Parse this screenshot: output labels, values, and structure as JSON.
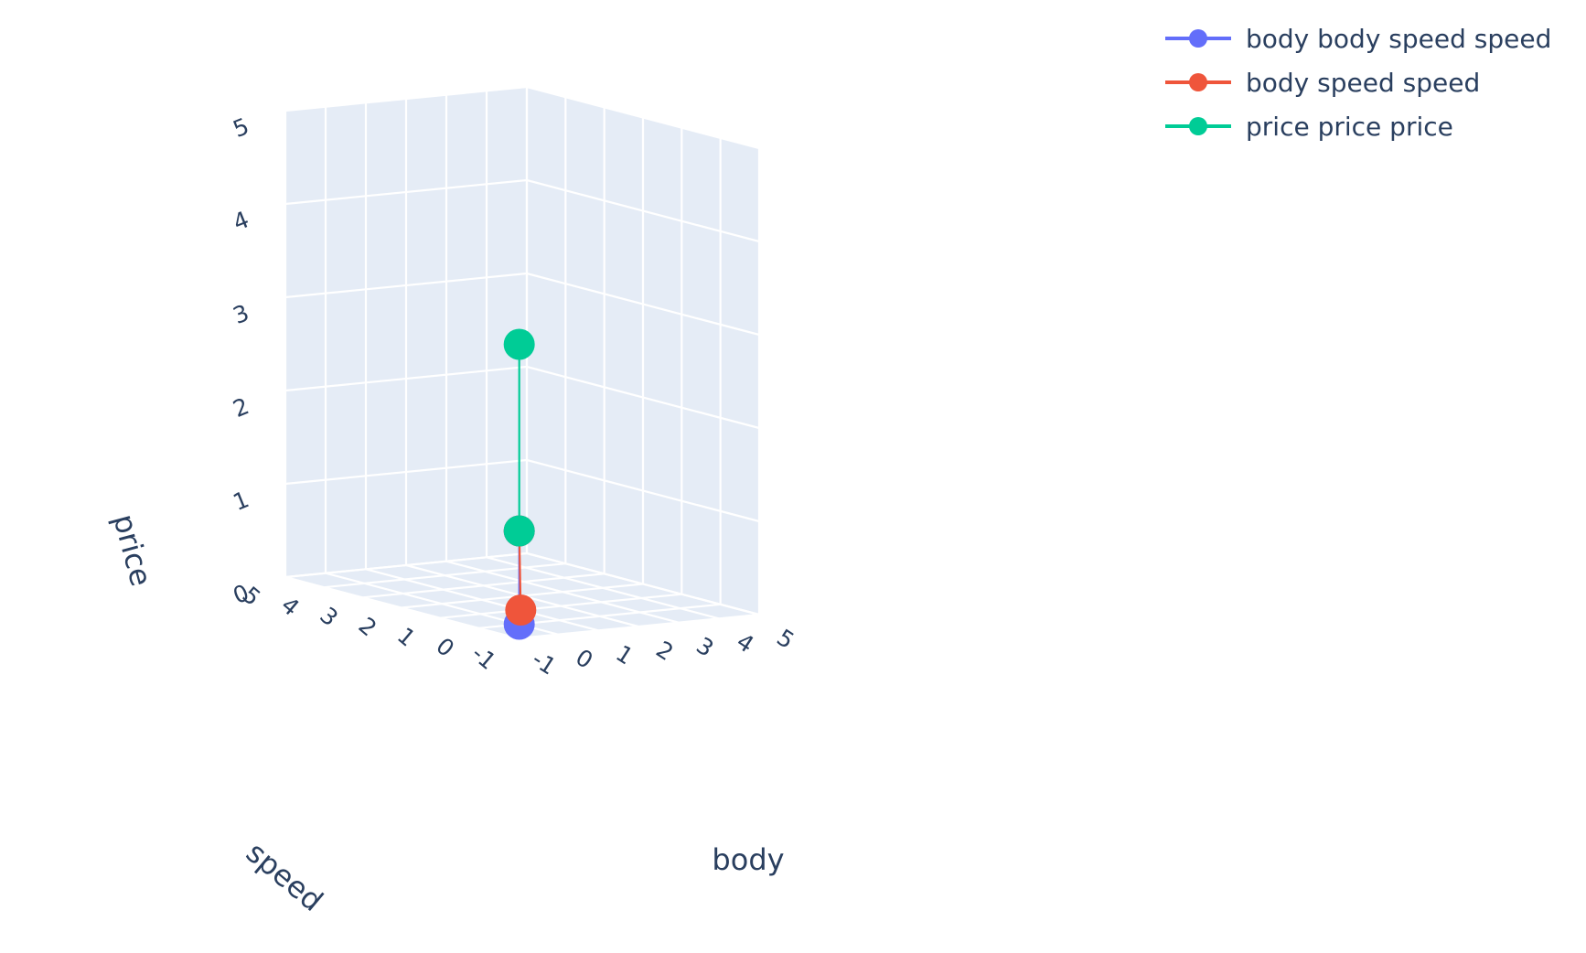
{
  "chart_data": {
    "type": "scatter3d",
    "mode": "lines+markers",
    "axes": {
      "x": {
        "title": "body",
        "range": [
          -1,
          5
        ],
        "ticks": [
          "-1",
          "0",
          "1",
          "2",
          "3",
          "4",
          "5"
        ]
      },
      "y": {
        "title": "speed",
        "range": [
          -1,
          5
        ],
        "ticks": [
          "-1",
          "0",
          "1",
          "2",
          "3",
          "4",
          "5"
        ]
      },
      "z": {
        "title": "price",
        "range": [
          0,
          5
        ],
        "ticks": [
          "0",
          "1",
          "2",
          "3",
          "4",
          "5"
        ]
      }
    },
    "grid": true,
    "legend_position": "top-right",
    "series": [
      {
        "name": "body body speed speed",
        "color": "#636efa",
        "points": [
          {
            "x": 0,
            "y": 0,
            "z": 0
          },
          {
            "x": 0,
            "y": 0,
            "z": 1
          }
        ]
      },
      {
        "name": "body speed speed",
        "color": "#ef553b",
        "points": [
          {
            "x": 0,
            "y": 0,
            "z": 1
          },
          {
            "x": 1,
            "y": 1,
            "z": 0
          }
        ]
      },
      {
        "name": "price price price",
        "color": "#00cc96",
        "points": [
          {
            "x": 0,
            "y": 0,
            "z": 1
          },
          {
            "x": 0,
            "y": 0,
            "z": 3
          }
        ]
      }
    ]
  }
}
